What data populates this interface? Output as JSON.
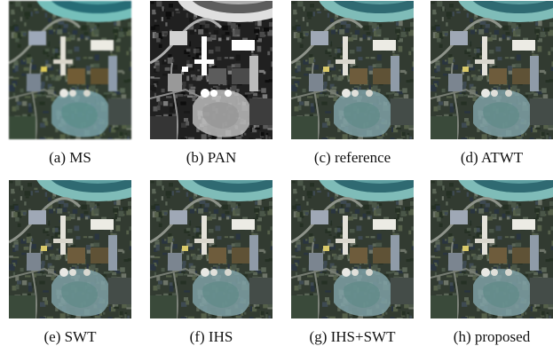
{
  "panels": [
    {
      "label": "(a) MS"
    },
    {
      "label": "(b) PAN"
    },
    {
      "label": "(c) reference"
    },
    {
      "label": "(d) ATWT"
    },
    {
      "label": "(e) SWT"
    },
    {
      "label": "(f) IHS"
    },
    {
      "label": "(g) IHS+SWT"
    },
    {
      "label": "(h) proposed"
    }
  ]
}
